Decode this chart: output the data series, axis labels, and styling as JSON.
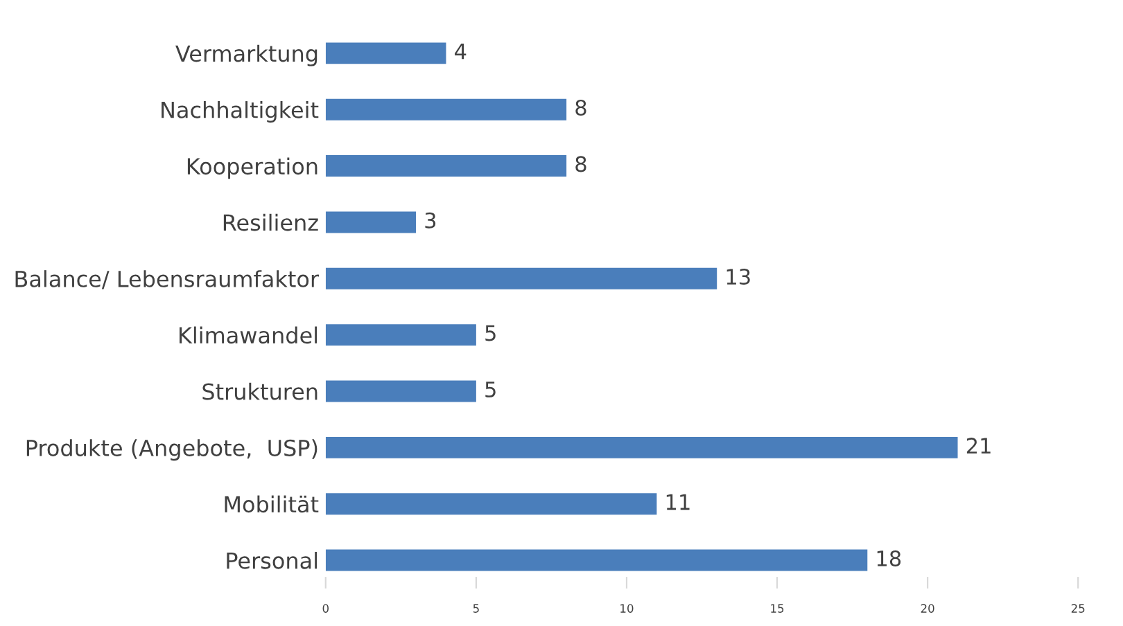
{
  "chart_data": {
    "type": "bar",
    "orientation": "horizontal",
    "categories": [
      "Vermarktung",
      "Nachhaltigkeit",
      "Kooperation",
      "Resilienz",
      "Balance/ Lebensraumfaktor",
      "Klimawandel",
      "Strukturen",
      "Produkte (Angebote,  USP)",
      "Mobilität",
      "Personal"
    ],
    "values": [
      4,
      8,
      8,
      3,
      13,
      5,
      5,
      21,
      11,
      18
    ],
    "color": "#4a7ebb",
    "xlim": [
      0,
      25
    ],
    "xticks": [
      0,
      5,
      10,
      15,
      20,
      25
    ],
    "data_labels": true,
    "grid": false
  }
}
